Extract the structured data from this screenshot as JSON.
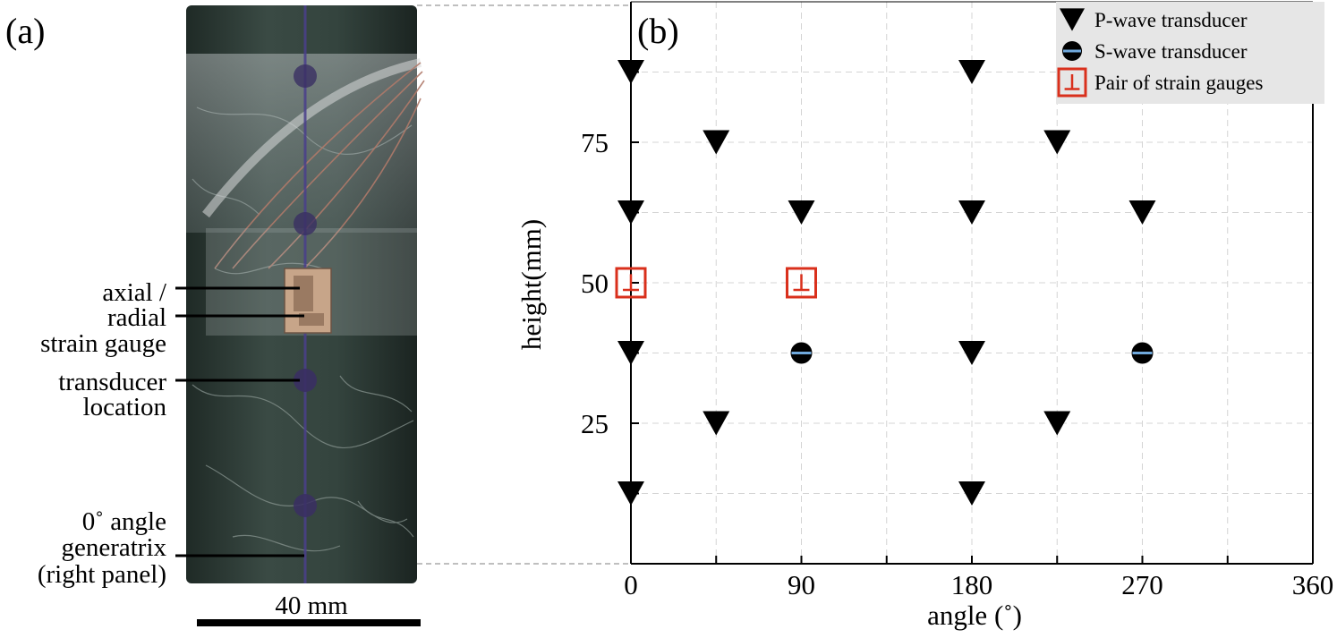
{
  "panel_a": {
    "label": "(a)",
    "annotations": {
      "gauge_line1": "axial /",
      "gauge_line2": "radial",
      "gauge_line3": "strain gauge",
      "transducer_line1": "transducer",
      "transducer_line2": "location",
      "angle_line1": "0˚ angle",
      "angle_line2": "generatrix",
      "angle_line3": "(right panel)"
    },
    "scale_bar_label": "40 mm",
    "colors": {
      "rock": "#2f3d37",
      "rock_light": "#6f7f78",
      "marker_line": "#4a3f8c",
      "copper": "#b58a6a"
    }
  },
  "panel_b": {
    "label": "(b)"
  },
  "chart_data": {
    "type": "scatter",
    "title": "",
    "xlabel": "angle (˚)",
    "ylabel": "height(mm)",
    "xlim": [
      0,
      360
    ],
    "ylim": [
      0,
      100
    ],
    "xticks": [
      0,
      45,
      90,
      135,
      180,
      225,
      270,
      315,
      360
    ],
    "xtick_labels": [
      "0",
      "",
      "90",
      "",
      "180",
      "",
      "270",
      "",
      "360"
    ],
    "yticks": [
      12.5,
      25,
      37.5,
      50,
      62.5,
      75,
      87.5
    ],
    "ytick_labels": [
      "",
      "25",
      "",
      "50",
      "",
      "75",
      ""
    ],
    "grid": true,
    "legend_position": "top-right",
    "series": [
      {
        "name": "P-wave transducer",
        "marker": "down-triangle",
        "color": "#000000",
        "points": [
          [
            0,
            87.5
          ],
          [
            180,
            87.5
          ],
          [
            45,
            75
          ],
          [
            225,
            75
          ],
          [
            0,
            62.5
          ],
          [
            90,
            62.5
          ],
          [
            180,
            62.5
          ],
          [
            270,
            62.5
          ],
          [
            0,
            37.5
          ],
          [
            180,
            37.5
          ],
          [
            45,
            25
          ],
          [
            225,
            25
          ],
          [
            0,
            12.5
          ],
          [
            180,
            12.5
          ]
        ]
      },
      {
        "name": "S-wave transducer",
        "marker": "circle-with-bar",
        "color": "#000000",
        "bar_color": "#6fa8dc",
        "points": [
          [
            90,
            37.5
          ],
          [
            270,
            37.5
          ]
        ]
      },
      {
        "name": "Pair of strain gauges",
        "marker": "square-with-T",
        "color": "#d9301c",
        "points": [
          [
            0,
            50
          ],
          [
            90,
            50
          ]
        ]
      }
    ]
  }
}
